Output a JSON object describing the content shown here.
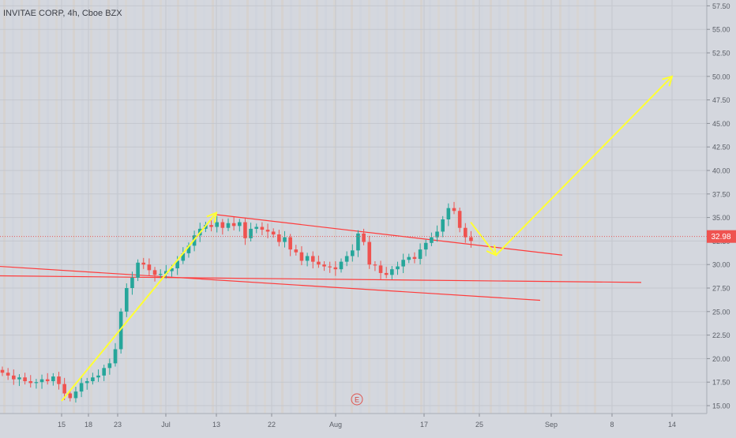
{
  "chart_data": {
    "type": "candlestick",
    "title": "INVITAE CORP, 4h, Cboe BZX",
    "last_price": "32.98",
    "y_ticks": [
      "15.00",
      "17.50",
      "20.00",
      "22.50",
      "25.00",
      "27.50",
      "30.00",
      "32.50",
      "35.00",
      "37.50",
      "40.00",
      "42.50",
      "45.00",
      "47.50",
      "50.00",
      "52.50",
      "55.00",
      "57.50"
    ],
    "ylim": [
      14.5,
      58.0
    ],
    "x_ticks": [
      "15",
      "18",
      "23",
      "Jul",
      "13",
      "22",
      "Aug",
      "17",
      "25",
      "Sep",
      "8",
      "14"
    ],
    "grid": true,
    "earnings_marker": "E",
    "series": [
      {
        "name": "",
        "ohlc_close_path": [
          18.5,
          18.2,
          17.8,
          18.0,
          17.6,
          17.4,
          17.5,
          17.8,
          17.6,
          18.1,
          17.3,
          16.3,
          15.8,
          16.5,
          17.4,
          17.6,
          18.0,
          18.2,
          19.0,
          19.5,
          21.0,
          25.0,
          27.5,
          28.6,
          30.2,
          30.0,
          29.4,
          28.9,
          29.0,
          29.3,
          29.6,
          30.4,
          31.2,
          32.0,
          33.1,
          33.8,
          34.2,
          34.0,
          34.5,
          33.9,
          34.4,
          34.1,
          34.5,
          32.8,
          33.8,
          34.0,
          33.7,
          33.5,
          33.2,
          32.4,
          32.9,
          31.6,
          31.3,
          30.4,
          30.9,
          30.3,
          30.0,
          29.8,
          29.7,
          29.5,
          30.3,
          30.9,
          31.5,
          33.3,
          32.4,
          30.0,
          29.9,
          29.1,
          28.9,
          29.5,
          29.8,
          30.5,
          30.8,
          30.6,
          31.6,
          32.3,
          32.9,
          33.5,
          34.8,
          36.0,
          35.7,
          33.9,
          32.9,
          32.5
        ]
      }
    ],
    "annotations": [
      {
        "type": "arrow",
        "color": "#ffff33",
        "from": [
          "Jun 15",
          15.5
        ],
        "to": [
          "Jul 13",
          35.5
        ]
      },
      {
        "type": "arrow",
        "color": "#ffff33",
        "from": [
          "Aug 24",
          34.5
        ],
        "to": [
          "Aug 27",
          31.0
        ]
      },
      {
        "type": "arrow",
        "color": "#ffff33",
        "from": [
          "Aug 27",
          31.0
        ],
        "to": [
          "Sep 14",
          50.0
        ]
      },
      {
        "type": "trendline",
        "color": "#ff3b3b",
        "from": [
          "Jul 13",
          35.3
        ],
        "to": [
          "Sep 3",
          31.0
        ]
      },
      {
        "type": "trendline",
        "color": "#ff3b3b",
        "from": [
          "Jun 25",
          28.8
        ],
        "to": [
          "Sep 10",
          28.1
        ]
      },
      {
        "type": "trendline",
        "color": "#ff3b3b",
        "from": [
          "Jul 14",
          29.8
        ],
        "to": [
          "Sep 1",
          26.2
        ]
      }
    ]
  }
}
